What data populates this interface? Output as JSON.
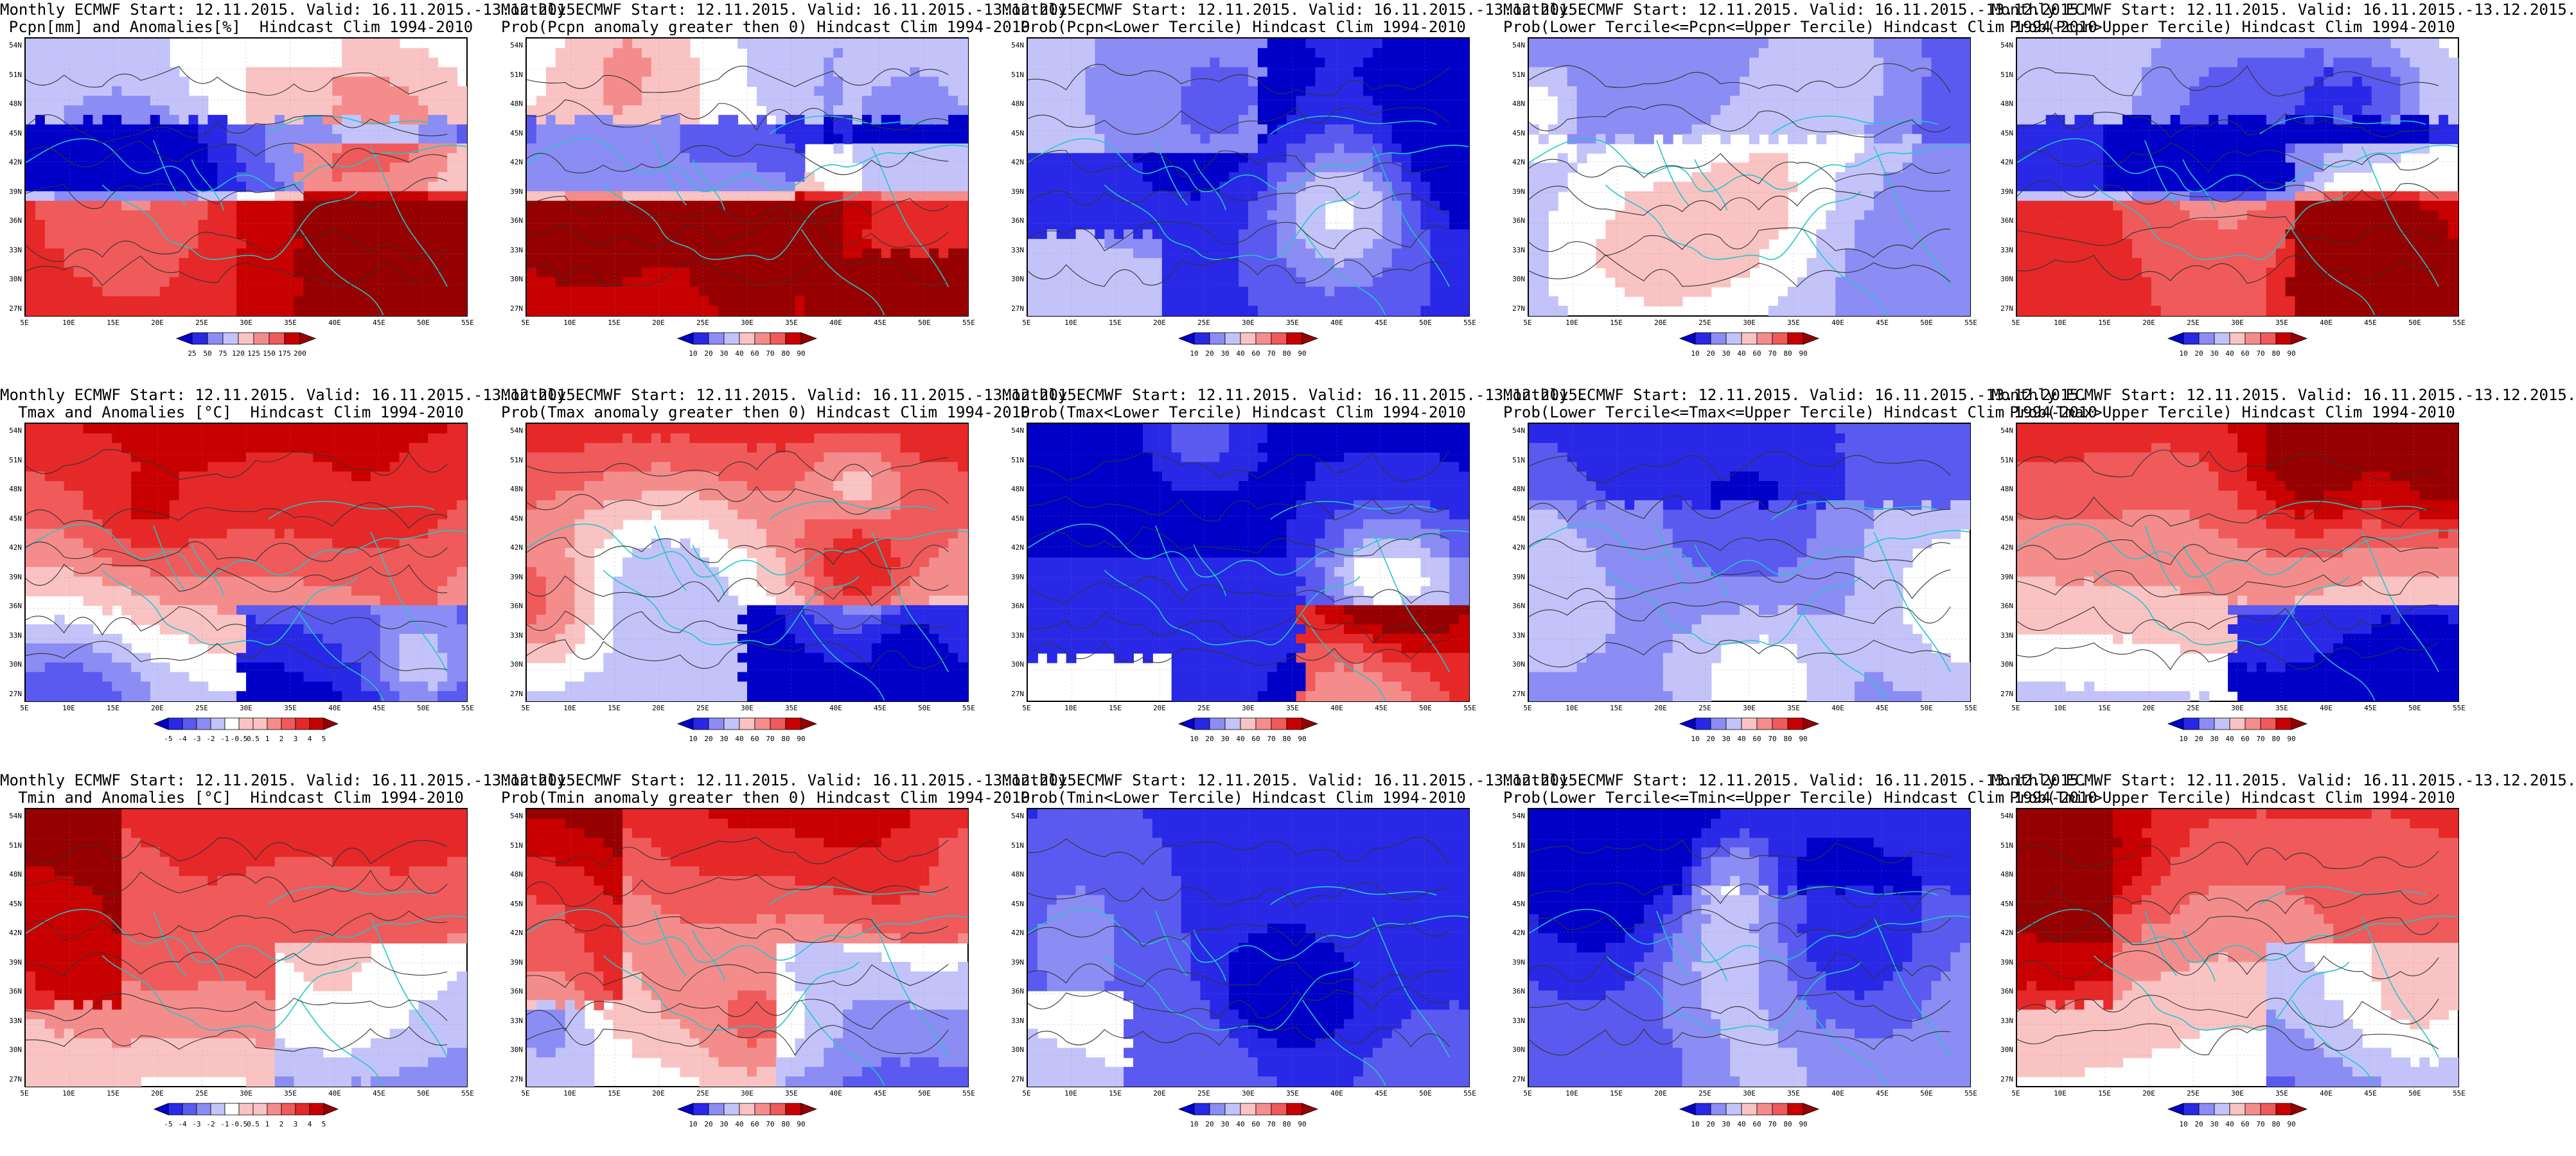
{
  "map": {
    "lat_labels": [
      "54N",
      "51N",
      "48N",
      "45N",
      "42N",
      "39N",
      "36N",
      "33N",
      "30N",
      "27N"
    ],
    "lon_labels": [
      "5E",
      "10E",
      "15E",
      "20E",
      "25E",
      "30E",
      "35E",
      "40E",
      "45E",
      "50E",
      "55E"
    ]
  },
  "legends": {
    "pcpn_anom": [
      "25",
      "50",
      "75",
      "120",
      "125",
      "150",
      "175",
      "200"
    ],
    "prob": [
      "10",
      "20",
      "30",
      "40",
      "60",
      "70",
      "80",
      "90"
    ],
    "temp_anom": [
      "-5",
      "-4",
      "-3",
      "-2",
      "-1",
      "-0.5",
      "0.5",
      "1",
      "2",
      "3",
      "4",
      "5"
    ]
  },
  "colors": {
    "land_lines": "#20c8c8",
    "contours": "#333333",
    "scale": [
      "#0000c8",
      "#2828e6",
      "#5a5af0",
      "#8c8cf5",
      "#c3c3fa",
      "#ffffff",
      "#fac3c3",
      "#f58c8c",
      "#f05a5a",
      "#e62828",
      "#c80000",
      "#960000"
    ]
  },
  "panels": [
    {
      "row": 0,
      "col": 0,
      "line1": "Monthly ECMWF Start: 12.11.2015. Valid: 16.11.2015.-13.12.2015.",
      "line2": "Pcpn[mm] and Anomalies[%]  Hindcast Clim 1994-2010",
      "legend": "pcpn_anom"
    },
    {
      "row": 0,
      "col": 1,
      "line1": "Monthly ECMWF Start: 12.11.2015. Valid: 16.11.2015.-13.12.2015.",
      "line2": "Prob(Pcpn anomaly greater then 0) Hindcast Clim 1994-2010",
      "legend": "prob"
    },
    {
      "row": 0,
      "col": 2,
      "line1": "Monthly ECMWF Start: 12.11.2015. Valid: 16.11.2015.-13.12.2015.",
      "line2": "Prob(Pcpn<Lower Tercile) Hindcast Clim 1994-2010",
      "legend": "prob"
    },
    {
      "row": 0,
      "col": 3,
      "line1": "Monthly ECMWF Start: 12.11.2015. Valid: 16.11.2015.-13.12.2015.",
      "line2": "Prob(Lower Tercile<=Pcpn<=Upper Tercile) Hindcast Clim 1994-2010",
      "legend": "prob"
    },
    {
      "row": 0,
      "col": 4,
      "line1": "Monthly ECMWF Start: 12.11.2015. Valid: 16.11.2015.-13.12.2015.",
      "line2": "Prob(Pcpn>Upper Tercile) Hindcast Clim 1994-2010",
      "legend": "prob"
    },
    {
      "row": 1,
      "col": 0,
      "line1": "Monthly ECMWF Start: 12.11.2015. Valid: 16.11.2015.-13.12.2015.",
      "line2": "Tmax and Anomalies [°C]  Hindcast Clim 1994-2010",
      "legend": "temp_anom"
    },
    {
      "row": 1,
      "col": 1,
      "line1": "Monthly ECMWF Start: 12.11.2015. Valid: 16.11.2015.-13.12.2015.",
      "line2": "Prob(Tmax anomaly greater then 0) Hindcast Clim 1994-2010",
      "legend": "prob"
    },
    {
      "row": 1,
      "col": 2,
      "line1": "Monthly ECMWF Start: 12.11.2015. Valid: 16.11.2015.-13.12.2015.",
      "line2": "Prob(Tmax<Lower Tercile) Hindcast Clim 1994-2010",
      "legend": "prob"
    },
    {
      "row": 1,
      "col": 3,
      "line1": "Monthly ECMWF Start: 12.11.2015. Valid: 16.11.2015.-13.12.2015.",
      "line2": "Prob(Lower Tercile<=Tmax<=Upper Tercile) Hindcast Clim 1994-2010",
      "legend": "prob"
    },
    {
      "row": 1,
      "col": 4,
      "line1": "Monthly ECMWF Start: 12.11.2015. Valid: 16.11.2015.-13.12.2015.",
      "line2": "Prob(Tmax>Upper Tercile) Hindcast Clim 1994-2010",
      "legend": "prob"
    },
    {
      "row": 2,
      "col": 0,
      "line1": "Monthly ECMWF Start: 12.11.2015. Valid: 16.11.2015.-13.12.2015.",
      "line2": "Tmin and Anomalies [°C]  Hindcast Clim 1994-2010",
      "legend": "temp_anom"
    },
    {
      "row": 2,
      "col": 1,
      "line1": "Monthly ECMWF Start: 12.11.2015. Valid: 16.11.2015.-13.12.2015.",
      "line2": "Prob(Tmin anomaly greater then 0) Hindcast Clim 1994-2010",
      "legend": "prob"
    },
    {
      "row": 2,
      "col": 2,
      "line1": "Monthly ECMWF Start: 12.11.2015. Valid: 16.11.2015.-13.12.2015.",
      "line2": "Prob(Tmin<Lower Tercile) Hindcast Clim 1994-2010",
      "legend": "prob"
    },
    {
      "row": 2,
      "col": 3,
      "line1": "Monthly ECMWF Start: 12.11.2015. Valid: 16.11.2015.-13.12.2015.",
      "line2": "Prob(Lower Tercile<=Tmin<=Upper Tercile) Hindcast Clim 1994-2010",
      "legend": "prob"
    },
    {
      "row": 2,
      "col": 4,
      "line1": "Monthly ECMWF Start: 12.11.2015. Valid: 16.11.2015.-13.12.2015.",
      "line2": "Prob(Tmin>Upper Tercile) Hindcast Clim 1994-2010",
      "legend": "prob"
    }
  ]
}
